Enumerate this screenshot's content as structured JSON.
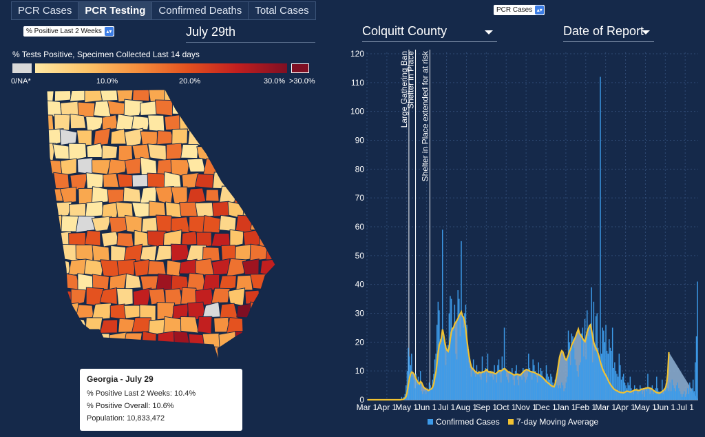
{
  "tabs": [
    {
      "label": "PCR Cases",
      "active": false
    },
    {
      "label": "PCR Testing",
      "active": true
    },
    {
      "label": "Confirmed Deaths",
      "active": false
    },
    {
      "label": "Total Cases",
      "active": false
    }
  ],
  "metric_select": {
    "value": "% Positive Last 2 Weeks"
  },
  "date_label": "July 29th",
  "chart_select": {
    "value": "PCR Cases"
  },
  "county_dropdown": {
    "value": "Colquitt County"
  },
  "date_type_dropdown": {
    "value": "Date of Report"
  },
  "legend": {
    "title": "% Tests Positive, Specimen Collected Last 14 days",
    "ticks": [
      "0/NA*",
      "10.0%",
      "20.0%",
      "30.0%",
      ">30.0%"
    ],
    "colors": {
      "na": "#d9d9d9",
      "low": "#ffe8a3",
      "high": "#7f0f23"
    }
  },
  "tooltip": {
    "title": "Georgia - July 29",
    "pos_2wk": "% Positive Last 2 Weeks: 10.4%",
    "pos_overall": "% Positive Overall: 10.6%",
    "population": "Population: 10,833,472"
  },
  "chart_data": {
    "type": "bar",
    "x_tick_labels": [
      "Mar 1",
      "Apr 1",
      "May 1",
      "Jun 1",
      "Jul 1",
      "Aug 1",
      "Sep 1",
      "Oct 1",
      "Nov 1",
      "Dec 1",
      "Jan 1",
      "Feb 1",
      "Mar 1",
      "Apr 1",
      "May 1",
      "Jun 1",
      "Jul 1"
    ],
    "ylim": [
      0,
      120
    ],
    "y_ticks": [
      0,
      10,
      20,
      30,
      40,
      50,
      60,
      70,
      80,
      90,
      100,
      110,
      120
    ],
    "grid": true,
    "legend_placement": "bottom",
    "series": [
      {
        "name": "Confirmed Cases",
        "color": "#3d9be9",
        "values": [
          0,
          0,
          0,
          0,
          0,
          0,
          0,
          0,
          0,
          0,
          0,
          0,
          0,
          0,
          0,
          0,
          0,
          0,
          0,
          0,
          0,
          0,
          0,
          0,
          0,
          0,
          0,
          0,
          0,
          0,
          0,
          1,
          0,
          1,
          2,
          5,
          10,
          18,
          15,
          12,
          16,
          8,
          7,
          4,
          9,
          5,
          8,
          6,
          10,
          3,
          2,
          3,
          3,
          2,
          4,
          3,
          6,
          5,
          4,
          7,
          9,
          14,
          16,
          26,
          34,
          31,
          21,
          20,
          59,
          22,
          19,
          12,
          17,
          19,
          30,
          36,
          35,
          25,
          24,
          33,
          16,
          14,
          38,
          35,
          22,
          55,
          30,
          25,
          30,
          33,
          26,
          17,
          13,
          11,
          8,
          10,
          14,
          9,
          8,
          12,
          9,
          10,
          8,
          7,
          15,
          10,
          9,
          11,
          6,
          16,
          10,
          8,
          10,
          8,
          7,
          12,
          9,
          6,
          12,
          14,
          9,
          6,
          15,
          11,
          25,
          10,
          8,
          7,
          6,
          10,
          9,
          11,
          7,
          5,
          10,
          12,
          7,
          5,
          9,
          8,
          7,
          11,
          8,
          6,
          7,
          8,
          16,
          11,
          10,
          7,
          14,
          12,
          10,
          8,
          6,
          13,
          9,
          11,
          10,
          8,
          7,
          6,
          12,
          9,
          8,
          7,
          9,
          8,
          6,
          5,
          7,
          6,
          5,
          4,
          5,
          4,
          6,
          5,
          3,
          4,
          6,
          8,
          24,
          20,
          12,
          23,
          22,
          18,
          14,
          12,
          10,
          8,
          12,
          13,
          23,
          25,
          15,
          28,
          14,
          31,
          22,
          26,
          25,
          39,
          13,
          34,
          17,
          29,
          30,
          18,
          15,
          112,
          16,
          25,
          24,
          20,
          26,
          17,
          16,
          21,
          18,
          17,
          25,
          11,
          13,
          10,
          9,
          8,
          16,
          12,
          7,
          8,
          9,
          6,
          5,
          4,
          6,
          5,
          8,
          4,
          3,
          2,
          5,
          3,
          4,
          2,
          3,
          5,
          4,
          2,
          3,
          1,
          4,
          3,
          9,
          4,
          2,
          3,
          5,
          2,
          3,
          4,
          8,
          4,
          3,
          2,
          3,
          7,
          2,
          4,
          3,
          5,
          4,
          3,
          6,
          3,
          7,
          5,
          4,
          3,
          5,
          6,
          4,
          3,
          2,
          1,
          2,
          3,
          1,
          2,
          4,
          2,
          6,
          3,
          4,
          7,
          3,
          13,
          22,
          41
        ]
      },
      {
        "name": "7-day Moving Average",
        "color": "#f1c232",
        "values": [
          0,
          0,
          0,
          0,
          0,
          0,
          0,
          0,
          0,
          0,
          0,
          0,
          0,
          0,
          0,
          0,
          0,
          0,
          0,
          0,
          0,
          0,
          0,
          0,
          0,
          0,
          0,
          0,
          0,
          0,
          0,
          0.1,
          0.1,
          0.3,
          0.6,
          1.2,
          2.7,
          5.3,
          7.4,
          8.9,
          9.6,
          9.4,
          9.0,
          8.2,
          7.3,
          6.5,
          5.9,
          5.5,
          6.3,
          6.0,
          5.1,
          4.3,
          4.0,
          3.7,
          3.6,
          3.2,
          3.4,
          3.6,
          3.8,
          4.4,
          5.6,
          7.7,
          9.6,
          12.8,
          16.3,
          19.0,
          20.0,
          21.6,
          24.4,
          22.5,
          20.1,
          18.0,
          17.2,
          16.8,
          18.2,
          21.2,
          23.5,
          24.8,
          25.0,
          26.4,
          26.9,
          27.5,
          28.2,
          29.2,
          29.8,
          30.5,
          29.1,
          28.6,
          27.2,
          24.5,
          21.0,
          17.8,
          15.2,
          13.0,
          11.5,
          10.8,
          10.6,
          10.0,
          9.7,
          9.4,
          9.1,
          9.6,
          9.5,
          9.4,
          9.6,
          9.7,
          9.8,
          10.2,
          10.5,
          9.9,
          9.6,
          9.8,
          9.4,
          9.6,
          9.4,
          9.1,
          9.0,
          9.3,
          9.6,
          10.0,
          10.1,
          10.0,
          10.3,
          10.5,
          10.8,
          10.6,
          10.2,
          9.8,
          9.6,
          9.4,
          9.2,
          9.0,
          8.8,
          8.6,
          8.7,
          8.8,
          8.9,
          8.7,
          8.5,
          8.8,
          9.2,
          9.6,
          10.0,
          10.3,
          10.5,
          10.4,
          10.2,
          9.9,
          9.8,
          9.7,
          9.6,
          9.5,
          9.3,
          9.1,
          8.9,
          8.7,
          8.5,
          8.2,
          8.0,
          7.6,
          7.2,
          6.8,
          6.4,
          6.0,
          5.7,
          5.4,
          5.0,
          4.8,
          4.6,
          4.5,
          5.6,
          7.6,
          9.6,
          12.3,
          14.7,
          16.2,
          17.0,
          16.6,
          15.4,
          14.2,
          13.8,
          14.6,
          15.6,
          16.9,
          17.5,
          19.0,
          19.8,
          20.6,
          21.4,
          22.4,
          23.5,
          24.5,
          23.0,
          22.5,
          21.9,
          21.2,
          20.6,
          20.2,
          21.5,
          23.6,
          24.5,
          25.6,
          26.0,
          24.0,
          21.8,
          19.8,
          18.6,
          17.8,
          17.0,
          16.0,
          14.6,
          13.0,
          11.8,
          10.6,
          9.8,
          9.0,
          8.4,
          7.6,
          6.8,
          6.0,
          5.4,
          4.8,
          4.3,
          3.8,
          3.5,
          3.3,
          3.1,
          2.9,
          2.7,
          2.6,
          2.5,
          2.5,
          2.4,
          2.6,
          2.8,
          3.0,
          2.9,
          2.8,
          2.7,
          2.8,
          3.0,
          3.2,
          3.4,
          3.5,
          3.4,
          3.3,
          3.2,
          3.4,
          3.6,
          3.7,
          3.8,
          3.9,
          4.0,
          4.1,
          4.2,
          4.1,
          4.0,
          3.9,
          3.6,
          3.3,
          3.0,
          2.7,
          2.5,
          2.4,
          2.3,
          2.4,
          2.6,
          2.9,
          3.2,
          3.6,
          4.2,
          5.8,
          9.0,
          16.5
        ]
      }
    ],
    "annotations": [
      {
        "label": "Large Gathering Ban",
        "x_index": 38
      },
      {
        "label": "Shelter in Place",
        "x_index": 44
      },
      {
        "label": "Shelter in Place extended for at risk",
        "x_index": 57
      }
    ]
  }
}
